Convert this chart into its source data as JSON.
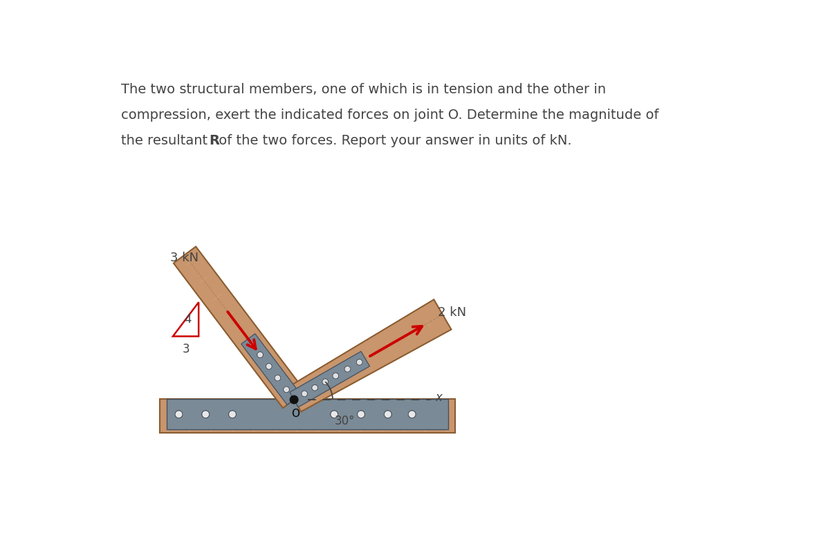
{
  "text_color": "#444444",
  "wood_color": "#c8956c",
  "wood_edge": "#8a5c30",
  "wood_light": "#ddb080",
  "metal_color": "#7a8a96",
  "metal_dark": "#556070",
  "metal_edge": "#445060",
  "arrow_color": "#cc0000",
  "label_3kN": "3 kN",
  "label_2kN": "2 kN",
  "label_O": "O",
  "label_x": "x",
  "label_4": "4",
  "label_3": "3",
  "label_30": "30°",
  "triangle_color": "#cc0000",
  "text_line1": "The two structural members, one of which is in tension and the other in",
  "text_line2": "compression, exert the indicated forces on joint O. Determine the magnitude of",
  "text_line3_before_R": "the resultant ",
  "text_line3_R": "R",
  "text_line3_after_R": " of the two forces. Report your answer in units of kN."
}
